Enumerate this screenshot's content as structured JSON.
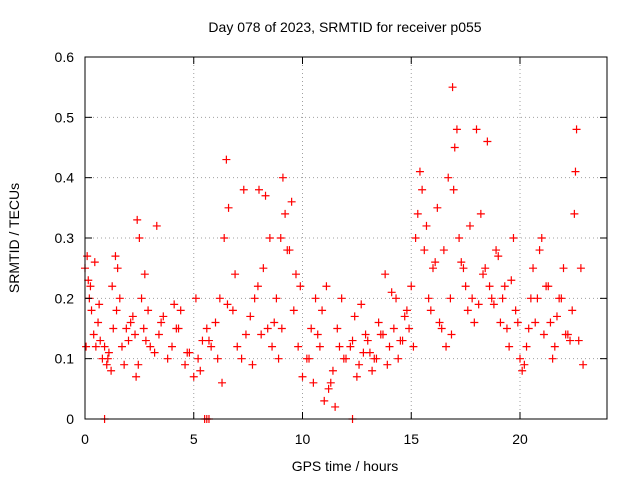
{
  "chart_data": {
    "type": "scatter",
    "title": "Day 078 of 2023, SRMTID for receiver p055",
    "xlabel": "GPS time / hours",
    "ylabel": "SRMTID / TECUs",
    "xlim": [
      0,
      24
    ],
    "ylim": [
      0,
      0.6
    ],
    "x_ticks": [
      0,
      5,
      10,
      15,
      20
    ],
    "y_ticks": [
      0,
      0.1,
      0.2,
      0.3,
      0.4,
      0.5,
      0.6
    ],
    "x_tick_labels": [
      "0",
      "5",
      "10",
      "15",
      "20"
    ],
    "y_tick_labels": [
      "0",
      "0.1",
      "0.2",
      "0.3",
      "0.4",
      "0.5",
      "0.6"
    ],
    "grid": true,
    "marker": "plus",
    "series": [
      {
        "name": "SRMTID",
        "color": "#ff0000",
        "x": [
          0.0,
          0.1,
          0.15,
          0.2,
          0.3,
          0.4,
          0.5,
          0.6,
          0.7,
          0.8,
          0.9,
          1.0,
          1.1,
          1.2,
          1.3,
          1.4,
          1.5,
          1.6,
          1.7,
          1.8,
          1.9,
          2.0,
          2.1,
          2.2,
          2.3,
          2.4,
          2.5,
          2.6,
          2.7,
          2.8,
          2.9,
          3.0,
          3.2,
          3.4,
          3.6,
          3.8,
          4.0,
          4.2,
          4.4,
          4.6,
          4.8,
          5.0,
          5.2,
          5.4,
          5.6,
          5.8,
          6.0,
          6.2,
          6.4,
          6.5,
          6.6,
          6.8,
          7.0,
          7.2,
          7.4,
          7.6,
          7.8,
          8.0,
          8.2,
          8.4,
          8.6,
          8.8,
          9.0,
          9.1,
          9.2,
          9.4,
          9.6,
          9.8,
          10.0,
          10.2,
          10.4,
          10.6,
          10.8,
          11.0,
          11.2,
          11.4,
          11.6,
          11.8,
          12.0,
          12.2,
          12.4,
          12.6,
          12.8,
          13.0,
          13.2,
          13.4,
          13.6,
          13.8,
          14.0,
          14.2,
          14.4,
          14.6,
          14.8,
          15.0,
          15.2,
          15.4,
          15.6,
          15.8,
          16.0,
          16.2,
          16.4,
          16.6,
          16.8,
          16.9,
          17.0,
          17.2,
          17.4,
          17.6,
          17.8,
          18.0,
          18.2,
          18.4,
          18.6,
          18.8,
          19.0,
          19.2,
          19.4,
          19.6,
          19.8,
          20.0,
          20.2,
          20.4,
          20.6,
          20.8,
          21.0,
          21.2,
          21.4,
          21.6,
          21.8,
          22.0,
          22.2,
          22.4,
          22.6,
          22.8,
          0.05,
          0.25,
          0.45,
          0.65,
          1.05,
          1.25,
          1.45,
          2.35,
          2.45,
          2.75,
          3.3,
          3.5,
          4.1,
          4.3,
          4.7,
          5.1,
          5.3,
          5.7,
          6.1,
          6.3,
          6.55,
          6.9,
          7.3,
          7.7,
          7.95,
          8.1,
          8.3,
          8.5,
          8.7,
          8.9,
          9.05,
          9.3,
          9.5,
          9.7,
          9.9,
          10.3,
          10.5,
          10.7,
          10.9,
          11.1,
          11.3,
          11.5,
          11.7,
          11.9,
          12.3,
          12.5,
          12.7,
          12.9,
          13.1,
          13.3,
          13.5,
          13.7,
          13.9,
          14.1,
          14.3,
          14.5,
          14.7,
          14.9,
          15.1,
          15.3,
          15.5,
          15.7,
          15.9,
          16.1,
          16.3,
          16.5,
          16.7,
          16.85,
          16.95,
          17.1,
          17.3,
          17.5,
          17.7,
          17.9,
          18.1,
          18.3,
          18.5,
          18.7,
          18.9,
          19.1,
          19.3,
          19.5,
          19.7,
          19.9,
          20.1,
          20.3,
          20.5,
          20.7,
          20.9,
          21.1,
          21.3,
          21.5,
          21.7,
          21.9,
          22.1,
          22.3,
          22.5,
          22.55,
          22.7,
          22.9,
          0.9,
          5.5,
          5.6,
          5.7,
          12.3
        ],
        "y": [
          0.25,
          0.27,
          0.23,
          0.2,
          0.18,
          0.14,
          0.12,
          0.16,
          0.13,
          0.1,
          0.12,
          0.09,
          0.11,
          0.08,
          0.15,
          0.27,
          0.25,
          0.2,
          0.12,
          0.09,
          0.15,
          0.13,
          0.16,
          0.17,
          0.14,
          0.33,
          0.3,
          0.2,
          0.15,
          0.13,
          0.18,
          0.12,
          0.11,
          0.14,
          0.17,
          0.1,
          0.12,
          0.15,
          0.18,
          0.09,
          0.11,
          0.07,
          0.1,
          0.13,
          0.15,
          0.12,
          0.16,
          0.2,
          0.3,
          0.43,
          0.35,
          0.18,
          0.12,
          0.1,
          0.14,
          0.17,
          0.2,
          0.38,
          0.25,
          0.15,
          0.12,
          0.2,
          0.3,
          0.4,
          0.34,
          0.28,
          0.18,
          0.12,
          0.07,
          0.1,
          0.15,
          0.2,
          0.12,
          0.03,
          0.05,
          0.08,
          0.15,
          0.2,
          0.1,
          0.12,
          0.17,
          0.09,
          0.11,
          0.13,
          0.08,
          0.1,
          0.14,
          0.24,
          0.12,
          0.15,
          0.1,
          0.13,
          0.18,
          0.22,
          0.3,
          0.41,
          0.28,
          0.2,
          0.25,
          0.35,
          0.15,
          0.12,
          0.2,
          0.55,
          0.45,
          0.3,
          0.25,
          0.18,
          0.2,
          0.48,
          0.34,
          0.25,
          0.22,
          0.19,
          0.27,
          0.2,
          0.15,
          0.23,
          0.18,
          0.1,
          0.09,
          0.15,
          0.25,
          0.2,
          0.3,
          0.22,
          0.16,
          0.12,
          0.2,
          0.25,
          0.14,
          0.18,
          0.48,
          0.25,
          0.12,
          0.22,
          0.26,
          0.19,
          0.1,
          0.22,
          0.18,
          0.07,
          0.09,
          0.24,
          0.32,
          0.16,
          0.19,
          0.15,
          0.11,
          0.2,
          0.08,
          0.13,
          0.1,
          0.06,
          0.19,
          0.24,
          0.38,
          0.09,
          0.22,
          0.14,
          0.37,
          0.3,
          0.16,
          0.1,
          0.15,
          0.28,
          0.36,
          0.24,
          0.22,
          0.1,
          0.06,
          0.14,
          0.18,
          0.22,
          0.06,
          0.02,
          0.12,
          0.1,
          0.13,
          0.07,
          0.19,
          0.14,
          0.11,
          0.1,
          0.16,
          0.14,
          0.09,
          0.21,
          0.2,
          0.13,
          0.17,
          0.15,
          0.12,
          0.34,
          0.38,
          0.32,
          0.18,
          0.26,
          0.16,
          0.28,
          0.4,
          0.14,
          0.38,
          0.48,
          0.26,
          0.22,
          0.32,
          0.16,
          0.19,
          0.24,
          0.46,
          0.2,
          0.28,
          0.16,
          0.22,
          0.12,
          0.3,
          0.16,
          0.08,
          0.12,
          0.2,
          0.16,
          0.28,
          0.14,
          0.22,
          0.1,
          0.17,
          0.2,
          0.14,
          0.13,
          0.34,
          0.41,
          0.13,
          0.09,
          0.0,
          0.0,
          0.0,
          0.0,
          0.0
        ]
      }
    ]
  }
}
